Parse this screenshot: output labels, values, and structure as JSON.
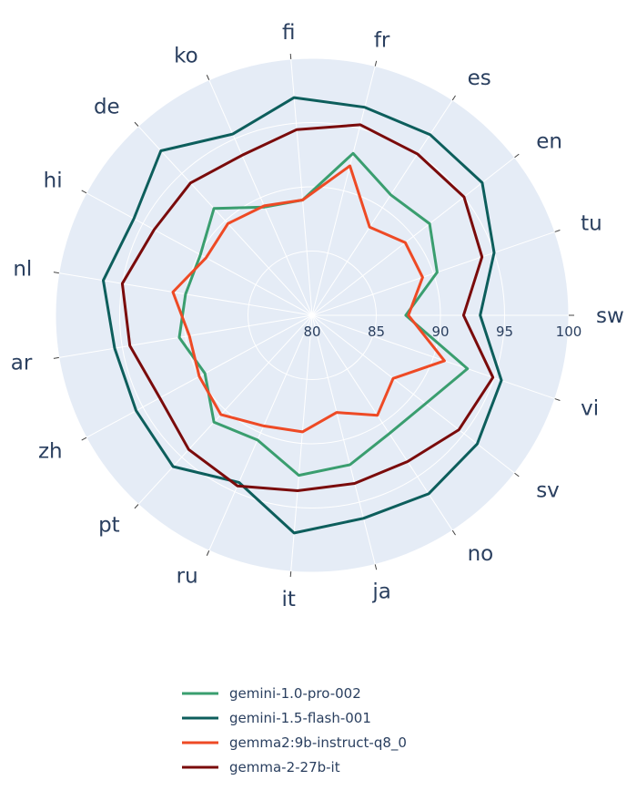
{
  "chart_data": {
    "type": "radar",
    "categories": [
      "sw",
      "tu",
      "en",
      "es",
      "fr",
      "fi",
      "ko",
      "de",
      "hi",
      "nl",
      "ar",
      "zh",
      "pt",
      "ru",
      "it",
      "ja",
      "no",
      "sv",
      "vi"
    ],
    "radial_range": [
      80,
      100
    ],
    "radial_ticks": [
      "80",
      "85",
      "90",
      "95",
      "100"
    ],
    "grid": true,
    "legend_position": "bottom",
    "series": [
      {
        "name": "gemini-1.0-pro-002",
        "color": "#3a9e6f",
        "values": [
          87.3,
          90.3,
          91.6,
          91.2,
          93.0,
          89.0,
          89.2,
          91.3,
          89.9,
          90.0,
          90.5,
          89.5,
          91.3,
          90.6,
          92.5,
          92.0,
          91.0,
          91.2,
          92.8
        ]
      },
      {
        "name": "gemini-1.5-flash-001",
        "color": "#0d5e5c",
        "values": [
          93.1,
          95.0,
          96.8,
          96.8,
          96.7,
          97.0,
          95.4,
          97.4,
          95.8,
          96.5,
          95.6,
          95.6,
          96.0,
          94.2,
          97.0,
          96.3,
          96.6,
          96.3,
          95.6
        ]
      },
      {
        "name": "gemma2:9b-instruct-q8_0",
        "color": "#ee4a25",
        "values": [
          87.5,
          89.1,
          89.2,
          88.2,
          92.0,
          89.0,
          89.3,
          89.7,
          89.4,
          91.0,
          89.7,
          90.0,
          90.5,
          89.4,
          89.1,
          87.8,
          89.3,
          88.0,
          90.9
        ]
      },
      {
        "name": "gemma-2-27b-it",
        "color": "#7a0b0b",
        "values": [
          91.8,
          94.0,
          95.0,
          95.0,
          95.3,
          94.5,
          93.6,
          94.0,
          94.0,
          95.0,
          94.4,
          93.5,
          94.2,
          94.5,
          93.7,
          93.5,
          93.6,
          94.5,
          94.9
        ]
      }
    ]
  }
}
